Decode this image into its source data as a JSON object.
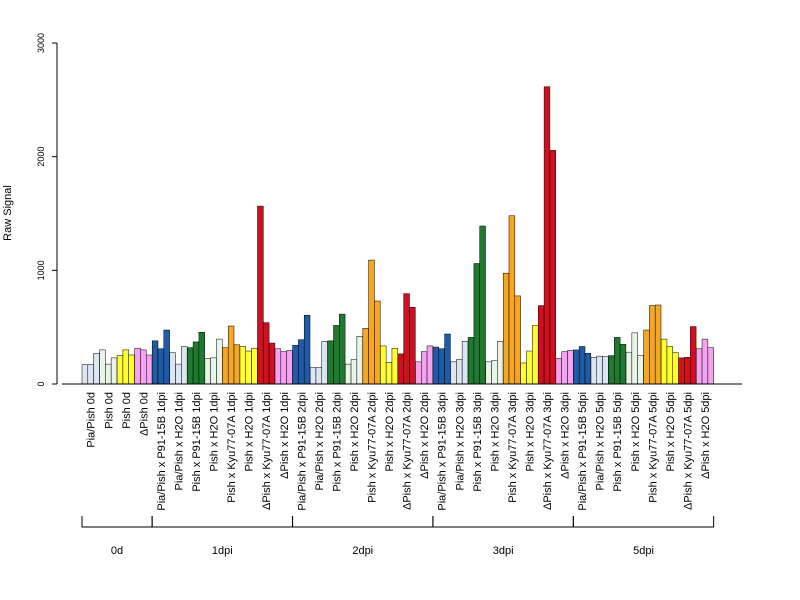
{
  "chart_data": {
    "type": "bar",
    "ylabel": "Raw Signal",
    "ylim": [
      0,
      3000
    ],
    "yticks": [
      0,
      1000,
      2000,
      3000
    ],
    "bars_per_category": 3,
    "bar_border_color": "#000000",
    "categories": [
      {
        "label": "Pia/Pish 0d",
        "color": "#dbe6f2",
        "values": [
          170,
          170,
          270
        ]
      },
      {
        "label": "Pish 0d",
        "color": "#e8f4e6",
        "values": [
          300,
          175,
          230
        ]
      },
      {
        "label": "Pish 0d",
        "color": "#ffff33",
        "values": [
          250,
          300,
          255
        ]
      },
      {
        "label": "ΔPish 0d",
        "color": "#f5a3f0",
        "values": [
          315,
          300,
          255
        ]
      },
      {
        "label": "Pia/Pish x P91-15B 1dpi",
        "color": "#1f5ba6",
        "values": [
          380,
          310,
          475
        ]
      },
      {
        "label": "Pia/Pish x H2O 1dpi",
        "color": "#dbe6f2",
        "values": [
          275,
          175,
          330
        ]
      },
      {
        "label": "Pish x P91-15B 1dpi",
        "color": "#1e7a2e",
        "values": [
          320,
          370,
          455
        ]
      },
      {
        "label": "Pish x H2O 1dpi",
        "color": "#e8f4e6",
        "values": [
          225,
          230,
          395
        ]
      },
      {
        "label": "Pish x Kyu77-07A 1dpi",
        "color": "#f5a623",
        "values": [
          320,
          510,
          345
        ]
      },
      {
        "label": "Pish x H2O 1dpi",
        "color": "#ffff33",
        "values": [
          330,
          290,
          315
        ]
      },
      {
        "label": "ΔPish x Kyu77-07A 1dpi",
        "color": "#d0101e",
        "values": [
          1565,
          540,
          360
        ]
      },
      {
        "label": "ΔPish x H2O 1dpi",
        "color": "#f5a3f0",
        "values": [
          310,
          285,
          295
        ]
      },
      {
        "label": "Pia/Pish x P91-15B 2dpi",
        "color": "#1f5ba6",
        "values": [
          340,
          390,
          605
        ]
      },
      {
        "label": "Pia/Pish x H2O 2dpi",
        "color": "#dbe6f2",
        "values": [
          145,
          145,
          375
        ]
      },
      {
        "label": "Pish x P91-15B 2dpi",
        "color": "#1e7a2e",
        "values": [
          380,
          515,
          615
        ]
      },
      {
        "label": "Pish x H2O 2dpi",
        "color": "#e8f4e6",
        "values": [
          175,
          215,
          420
        ]
      },
      {
        "label": "Pish x Kyu77-07A 2dpi",
        "color": "#f5a623",
        "values": [
          490,
          1090,
          730
        ]
      },
      {
        "label": "Pish x H2O 2dpi",
        "color": "#ffff33",
        "values": [
          335,
          190,
          315
        ]
      },
      {
        "label": "ΔPish x Kyu77-07A 2dpi",
        "color": "#d0101e",
        "values": [
          265,
          795,
          675
        ]
      },
      {
        "label": "ΔPish x H2O 2dpi",
        "color": "#f5a3f0",
        "values": [
          195,
          285,
          335
        ]
      },
      {
        "label": "Pia/Pish x P91-15B 3dpi",
        "color": "#1f5ba6",
        "values": [
          325,
          310,
          440
        ]
      },
      {
        "label": "Pia/Pish x H2O 3dpi",
        "color": "#dbe6f2",
        "values": [
          195,
          215,
          375
        ]
      },
      {
        "label": "Pish x P91-15B 3dpi",
        "color": "#1e7a2e",
        "values": [
          410,
          1060,
          1390
        ]
      },
      {
        "label": "Pish x H2O 3dpi",
        "color": "#e8f4e6",
        "values": [
          195,
          205,
          375
        ]
      },
      {
        "label": "Pish x Kyu77-07A 3dpi",
        "color": "#f5a623",
        "values": [
          975,
          1480,
          775
        ]
      },
      {
        "label": "Pish x H2O 3dpi",
        "color": "#ffff33",
        "values": [
          185,
          290,
          515
        ]
      },
      {
        "label": "ΔPish x Kyu77-07A 3dpi",
        "color": "#d0101e",
        "values": [
          690,
          2615,
          2055
        ]
      },
      {
        "label": "ΔPish x H2O 3dpi",
        "color": "#f5a3f0",
        "values": [
          225,
          285,
          295
        ]
      },
      {
        "label": "Pia/Pish x P91-15B 5dpi",
        "color": "#1f5ba6",
        "values": [
          300,
          330,
          270
        ]
      },
      {
        "label": "Pia/Pish x H2O 5dpi",
        "color": "#dbe6f2",
        "values": [
          235,
          245,
          240
        ]
      },
      {
        "label": "Pish x P91-15B 5dpi",
        "color": "#1e7a2e",
        "values": [
          250,
          410,
          350
        ]
      },
      {
        "label": "Pish x H2O 5dpi",
        "color": "#e8f4e6",
        "values": [
          280,
          450,
          250
        ]
      },
      {
        "label": "Pish x Kyu77-07A 5dpi",
        "color": "#f5a623",
        "values": [
          475,
          690,
          695
        ]
      },
      {
        "label": "Pish x H2O 5dpi",
        "color": "#ffff33",
        "values": [
          395,
          330,
          275
        ]
      },
      {
        "label": "ΔPish x Kyu77-07A 5dpi",
        "color": "#d0101e",
        "values": [
          230,
          235,
          505
        ]
      },
      {
        "label": "ΔPish x H2O 5dpi",
        "color": "#f5a3f0",
        "values": [
          310,
          395,
          320
        ]
      }
    ],
    "groups": [
      {
        "label": "0d",
        "from": 0,
        "to": 3
      },
      {
        "label": "1dpi",
        "from": 4,
        "to": 11
      },
      {
        "label": "2dpi",
        "from": 12,
        "to": 19
      },
      {
        "label": "3dpi",
        "from": 20,
        "to": 27
      },
      {
        "label": "5dpi",
        "from": 28,
        "to": 35
      }
    ]
  }
}
